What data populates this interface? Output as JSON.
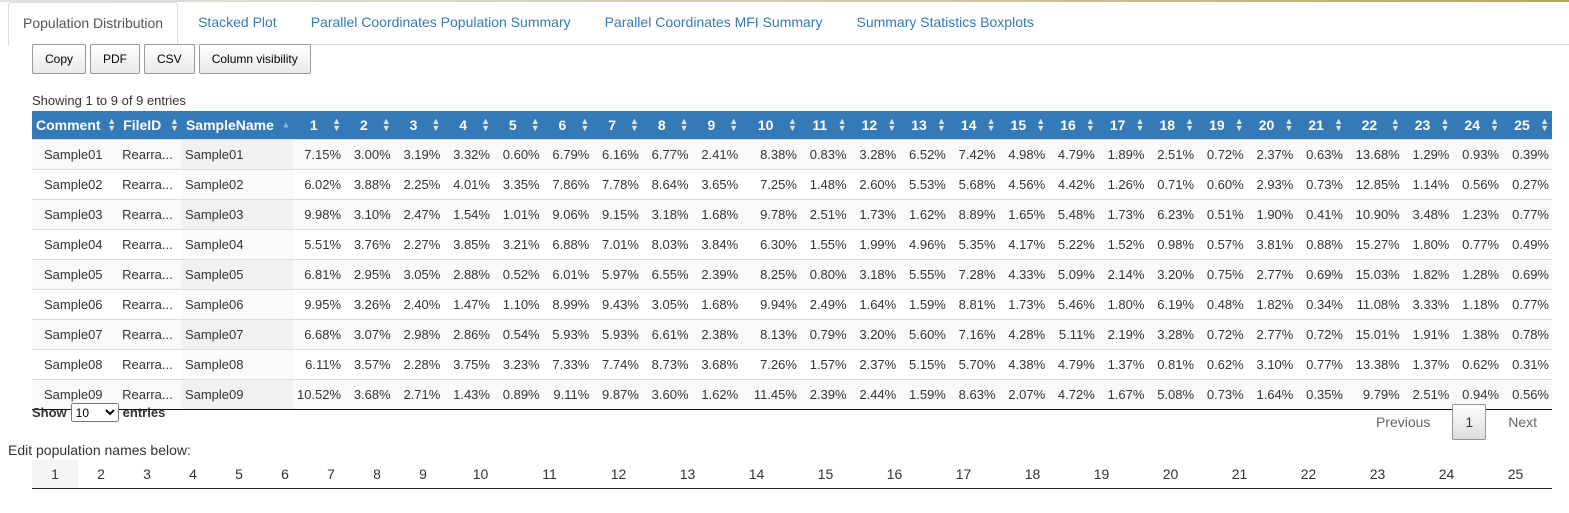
{
  "tabs": [
    {
      "label": "Population Distribution",
      "active": true
    },
    {
      "label": "Stacked Plot"
    },
    {
      "label": "Parallel Coordinates Population Summary"
    },
    {
      "label": "Parallel Coordinates MFI Summary"
    },
    {
      "label": "Summary Statistics Boxplots"
    }
  ],
  "buttons": {
    "copy": "Copy",
    "pdf": "PDF",
    "csv": "CSV",
    "colvis": "Column visibility"
  },
  "info": "Showing 1 to 9 of 9 entries",
  "table": {
    "headers": [
      "Comment",
      "FileID",
      "SampleName",
      "1",
      "2",
      "3",
      "4",
      "5",
      "6",
      "7",
      "8",
      "9",
      "10",
      "11",
      "12",
      "13",
      "14",
      "15",
      "16",
      "17",
      "18",
      "19",
      "20",
      "21",
      "22",
      "23",
      "24",
      "25"
    ],
    "rows": [
      [
        "Sample01",
        "Rearra...",
        "Sample01",
        "7.15%",
        "3.00%",
        "3.19%",
        "3.32%",
        "0.60%",
        "6.79%",
        "6.16%",
        "6.77%",
        "2.41%",
        "8.38%",
        "0.83%",
        "3.28%",
        "6.52%",
        "7.42%",
        "4.98%",
        "4.79%",
        "1.89%",
        "2.51%",
        "0.72%",
        "2.37%",
        "0.63%",
        "13.68%",
        "1.29%",
        "0.93%",
        "0.39%"
      ],
      [
        "Sample02",
        "Rearra...",
        "Sample02",
        "6.02%",
        "3.88%",
        "2.25%",
        "4.01%",
        "3.35%",
        "7.86%",
        "7.78%",
        "8.64%",
        "3.65%",
        "7.25%",
        "1.48%",
        "2.60%",
        "5.53%",
        "5.68%",
        "4.56%",
        "4.42%",
        "1.26%",
        "0.71%",
        "0.60%",
        "2.93%",
        "0.73%",
        "12.85%",
        "1.14%",
        "0.56%",
        "0.27%"
      ],
      [
        "Sample03",
        "Rearra...",
        "Sample03",
        "9.98%",
        "3.10%",
        "2.47%",
        "1.54%",
        "1.01%",
        "9.06%",
        "9.15%",
        "3.18%",
        "1.68%",
        "9.78%",
        "2.51%",
        "1.73%",
        "1.62%",
        "8.89%",
        "1.65%",
        "5.48%",
        "1.73%",
        "6.23%",
        "0.51%",
        "1.90%",
        "0.41%",
        "10.90%",
        "3.48%",
        "1.23%",
        "0.77%"
      ],
      [
        "Sample04",
        "Rearra...",
        "Sample04",
        "5.51%",
        "3.76%",
        "2.27%",
        "3.85%",
        "3.21%",
        "6.88%",
        "7.01%",
        "8.03%",
        "3.84%",
        "6.30%",
        "1.55%",
        "1.99%",
        "4.96%",
        "5.35%",
        "4.17%",
        "5.22%",
        "1.52%",
        "0.98%",
        "0.57%",
        "3.81%",
        "0.88%",
        "15.27%",
        "1.80%",
        "0.77%",
        "0.49%"
      ],
      [
        "Sample05",
        "Rearra...",
        "Sample05",
        "6.81%",
        "2.95%",
        "3.05%",
        "2.88%",
        "0.52%",
        "6.01%",
        "5.97%",
        "6.55%",
        "2.39%",
        "8.25%",
        "0.80%",
        "3.18%",
        "5.55%",
        "7.28%",
        "4.33%",
        "5.09%",
        "2.14%",
        "3.20%",
        "0.75%",
        "2.77%",
        "0.69%",
        "15.03%",
        "1.82%",
        "1.28%",
        "0.69%"
      ],
      [
        "Sample06",
        "Rearra...",
        "Sample06",
        "9.95%",
        "3.26%",
        "2.40%",
        "1.47%",
        "1.10%",
        "8.99%",
        "9.43%",
        "3.05%",
        "1.68%",
        "9.94%",
        "2.49%",
        "1.64%",
        "1.59%",
        "8.81%",
        "1.73%",
        "5.46%",
        "1.80%",
        "6.19%",
        "0.48%",
        "1.82%",
        "0.34%",
        "11.08%",
        "3.33%",
        "1.18%",
        "0.77%"
      ],
      [
        "Sample07",
        "Rearra...",
        "Sample07",
        "6.68%",
        "3.07%",
        "2.98%",
        "2.86%",
        "0.54%",
        "5.93%",
        "5.93%",
        "6.61%",
        "2.38%",
        "8.13%",
        "0.79%",
        "3.20%",
        "5.60%",
        "7.16%",
        "4.28%",
        "5.11%",
        "2.19%",
        "3.28%",
        "0.72%",
        "2.77%",
        "0.72%",
        "15.01%",
        "1.91%",
        "1.38%",
        "0.78%"
      ],
      [
        "Sample08",
        "Rearra...",
        "Sample08",
        "6.11%",
        "3.57%",
        "2.28%",
        "3.75%",
        "3.23%",
        "7.33%",
        "7.74%",
        "8.73%",
        "3.68%",
        "7.26%",
        "1.57%",
        "2.37%",
        "5.15%",
        "5.70%",
        "4.38%",
        "4.79%",
        "1.37%",
        "0.81%",
        "0.62%",
        "3.10%",
        "0.77%",
        "13.38%",
        "1.37%",
        "0.62%",
        "0.31%"
      ],
      [
        "Sample09",
        "Rearra...",
        "Sample09",
        "10.52%",
        "3.68%",
        "2.71%",
        "1.43%",
        "0.89%",
        "9.11%",
        "9.87%",
        "3.60%",
        "1.62%",
        "11.45%",
        "2.39%",
        "2.44%",
        "1.59%",
        "8.63%",
        "2.07%",
        "4.72%",
        "1.67%",
        "5.08%",
        "0.73%",
        "1.64%",
        "0.35%",
        "9.79%",
        "2.51%",
        "0.94%",
        "0.56%"
      ]
    ]
  },
  "length": {
    "show_label": "Show",
    "value": "10",
    "entries_label": "entries"
  },
  "pager": {
    "previous": "Previous",
    "current": "1",
    "next": "Next"
  },
  "edit_label": "Edit population names below:",
  "population_names": [
    "1",
    "2",
    "3",
    "4",
    "5",
    "6",
    "7",
    "8",
    "9",
    "10",
    "11",
    "12",
    "13",
    "14",
    "15",
    "16",
    "17",
    "18",
    "19",
    "20",
    "21",
    "22",
    "23",
    "24",
    "25"
  ],
  "colors": {
    "header_bg": "#337ab7",
    "link": "#337ab7"
  }
}
